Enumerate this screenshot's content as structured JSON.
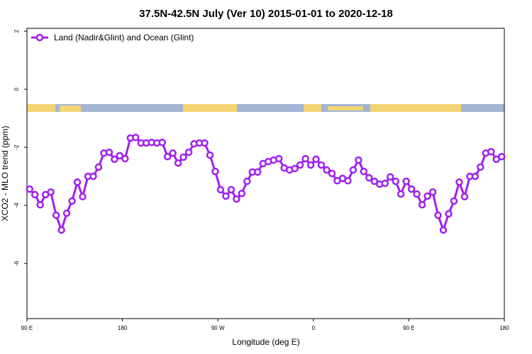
{
  "chart_data": {
    "type": "line",
    "title": "37.5N-42.5N July (Ver 10)   2015-01-01 to 2020-12-18",
    "x_label": "Longitude (deg E)",
    "y_label": "XCO2 - MLO trend (ppm)",
    "xlim": [
      90,
      540
    ],
    "xticks": [
      {
        "value": 90,
        "label": "90 E"
      },
      {
        "value": 180,
        "label": "180"
      },
      {
        "value": 270,
        "label": "90 W"
      },
      {
        "value": 360,
        "label": "0"
      },
      {
        "value": 450,
        "label": "90 E"
      },
      {
        "value": 540,
        "label": "180"
      }
    ],
    "ylim": [
      -7.9,
      2.1
    ],
    "yticks": [
      2,
      0,
      -2,
      -4,
      -6
    ],
    "legend_position": "upper left",
    "x": [
      92.5,
      97.5,
      102.5,
      107.5,
      112.5,
      117.5,
      122.5,
      127.5,
      132.5,
      137.5,
      142.5,
      147.5,
      152.5,
      157.5,
      162.5,
      167.5,
      172.5,
      177.5,
      182.5,
      187.5,
      192.5,
      197.5,
      202.5,
      207.5,
      212.5,
      217.5,
      222.5,
      227.5,
      232.5,
      237.5,
      242.5,
      247.5,
      252.5,
      257.5,
      262.5,
      267.5,
      272.5,
      277.5,
      282.5,
      287.5,
      292.5,
      297.5,
      302.5,
      307.5,
      312.5,
      317.5,
      322.5,
      327.5,
      332.5,
      337.5,
      342.5,
      347.5,
      352.5,
      357.5,
      362.5,
      367.5,
      372.5,
      377.5,
      382.5,
      387.5,
      392.5,
      397.5,
      402.5,
      407.5,
      412.5,
      417.5,
      422.5,
      427.5,
      432.5,
      437.5,
      442.5,
      447.5,
      452.5,
      457.5,
      462.5,
      467.5,
      472.5,
      477.5,
      482.5,
      487.5,
      492.5,
      497.5,
      502.5,
      507.5,
      512.5,
      517.5,
      522.5,
      527.5,
      532.5,
      537.5
    ],
    "series": [
      {
        "name": "Land (Nadir&Glint) and Ocean (Glint)",
        "color": "#a020f0",
        "values": [
          -3.44,
          -3.63,
          -3.98,
          -3.63,
          -3.54,
          -4.34,
          -4.85,
          -4.27,
          -3.85,
          -3.2,
          -3.7,
          -3.0,
          -3.0,
          -2.68,
          -2.2,
          -2.17,
          -2.41,
          -2.29,
          -2.39,
          -1.68,
          -1.66,
          -1.85,
          -1.85,
          -1.83,
          -1.85,
          -1.83,
          -2.32,
          -2.2,
          -2.54,
          -2.34,
          -2.17,
          -1.88,
          -1.85,
          -1.85,
          -2.27,
          -2.83,
          -3.46,
          -3.68,
          -3.46,
          -3.78,
          -3.59,
          -3.17,
          -2.85,
          -2.85,
          -2.56,
          -2.49,
          -2.44,
          -2.39,
          -2.71,
          -2.78,
          -2.73,
          -2.61,
          -2.39,
          -2.61,
          -2.41,
          -2.61,
          -2.78,
          -2.9,
          -3.15,
          -3.07,
          -3.15,
          -2.78,
          -2.44,
          -2.83,
          -3.05,
          -3.17,
          -3.27,
          -3.24,
          -3.02,
          -3.17,
          -3.61,
          -3.17,
          -3.44,
          -3.61,
          -3.98,
          -3.68,
          -3.54,
          -4.34,
          -4.85,
          -4.29,
          -3.85,
          -3.2,
          -3.7,
          -3.0,
          -3.0,
          -2.68,
          -2.2,
          -2.15,
          -2.41,
          -2.32
        ]
      }
    ]
  }
}
